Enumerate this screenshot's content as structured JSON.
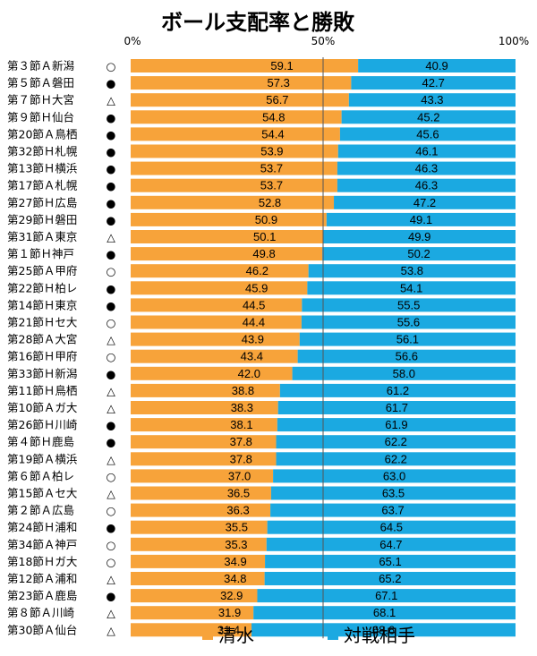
{
  "chart_data": {
    "type": "bar",
    "orientation": "horizontal",
    "stacked": true,
    "title": "ボール支配率と勝敗",
    "x_ticks": [
      "0%",
      "50%",
      "100%"
    ],
    "xlim": [
      0,
      100
    ],
    "reference_line": 50,
    "colors": {
      "shimizu": "#F7A33A",
      "opponent": "#1BA9E1"
    },
    "legend": {
      "position": "bottom",
      "labels": [
        "清水",
        "対戦相手"
      ]
    },
    "result_legend": {
      "win": "○",
      "loss": "●",
      "draw": "△"
    },
    "categories": [
      "第３節Ａ新潟",
      "第５節Ａ磐田",
      "第７節Ｈ大宮",
      "第９節Ｈ仙台",
      "第20節Ａ鳥栖",
      "第32節Ｈ札幌",
      "第13節Ｈ横浜",
      "第17節Ａ札幌",
      "第27節Ｈ広島",
      "第29節Ｈ磐田",
      "第31節Ａ東京",
      "第１節Ｈ神戸",
      "第25節Ａ甲府",
      "第22節Ｈ柏レ",
      "第14節Ｈ東京",
      "第21節Ｈセ大",
      "第28節Ａ大宮",
      "第16節Ｈ甲府",
      "第33節Ｈ新潟",
      "第11節Ｈ鳥栖",
      "第10節Ａガ大",
      "第26節Ｈ川崎",
      "第４節Ｈ鹿島",
      "第19節Ａ横浜",
      "第６節Ａ柏レ",
      "第15節Ａセ大",
      "第２節Ａ広島",
      "第24節Ｈ浦和",
      "第34節Ａ神戸",
      "第18節Ｈガ大",
      "第12節Ａ浦和",
      "第23節Ａ鹿島",
      "第８節Ａ川崎",
      "第30節Ａ仙台"
    ],
    "results": [
      "○",
      "●",
      "△",
      "●",
      "●",
      "●",
      "●",
      "●",
      "●",
      "●",
      "△",
      "●",
      "○",
      "●",
      "●",
      "○",
      "△",
      "○",
      "●",
      "△",
      "△",
      "●",
      "●",
      "△",
      "○",
      "△",
      "○",
      "●",
      "○",
      "○",
      "△",
      "●",
      "△",
      "△"
    ],
    "series": [
      {
        "name": "清水",
        "values": [
          "59.1",
          "57.3",
          "56.7",
          "54.8",
          "54.4",
          "53.9",
          "53.7",
          "53.7",
          "52.8",
          "50.9",
          "50.1",
          "49.8",
          "46.2",
          "45.9",
          "44.5",
          "44.4",
          "43.9",
          "43.4",
          "42.0",
          "38.8",
          "38.3",
          "38.1",
          "37.8",
          "37.8",
          "37.0",
          "36.5",
          "36.3",
          "35.5",
          "35.3",
          "34.9",
          "34.8",
          "32.9",
          "31.9",
          "31.4"
        ]
      },
      {
        "name": "対戦相手",
        "values": [
          "40.9",
          "42.7",
          "43.3",
          "45.2",
          "45.6",
          "46.1",
          "46.3",
          "46.3",
          "47.2",
          "49.1",
          "49.9",
          "50.2",
          "53.8",
          "54.1",
          "55.5",
          "55.6",
          "56.1",
          "56.6",
          "58.0",
          "61.2",
          "61.7",
          "61.9",
          "62.2",
          "62.2",
          "63.0",
          "63.5",
          "63.7",
          "64.5",
          "64.7",
          "65.1",
          "65.2",
          "67.1",
          "68.1",
          "68.6"
        ]
      }
    ]
  }
}
